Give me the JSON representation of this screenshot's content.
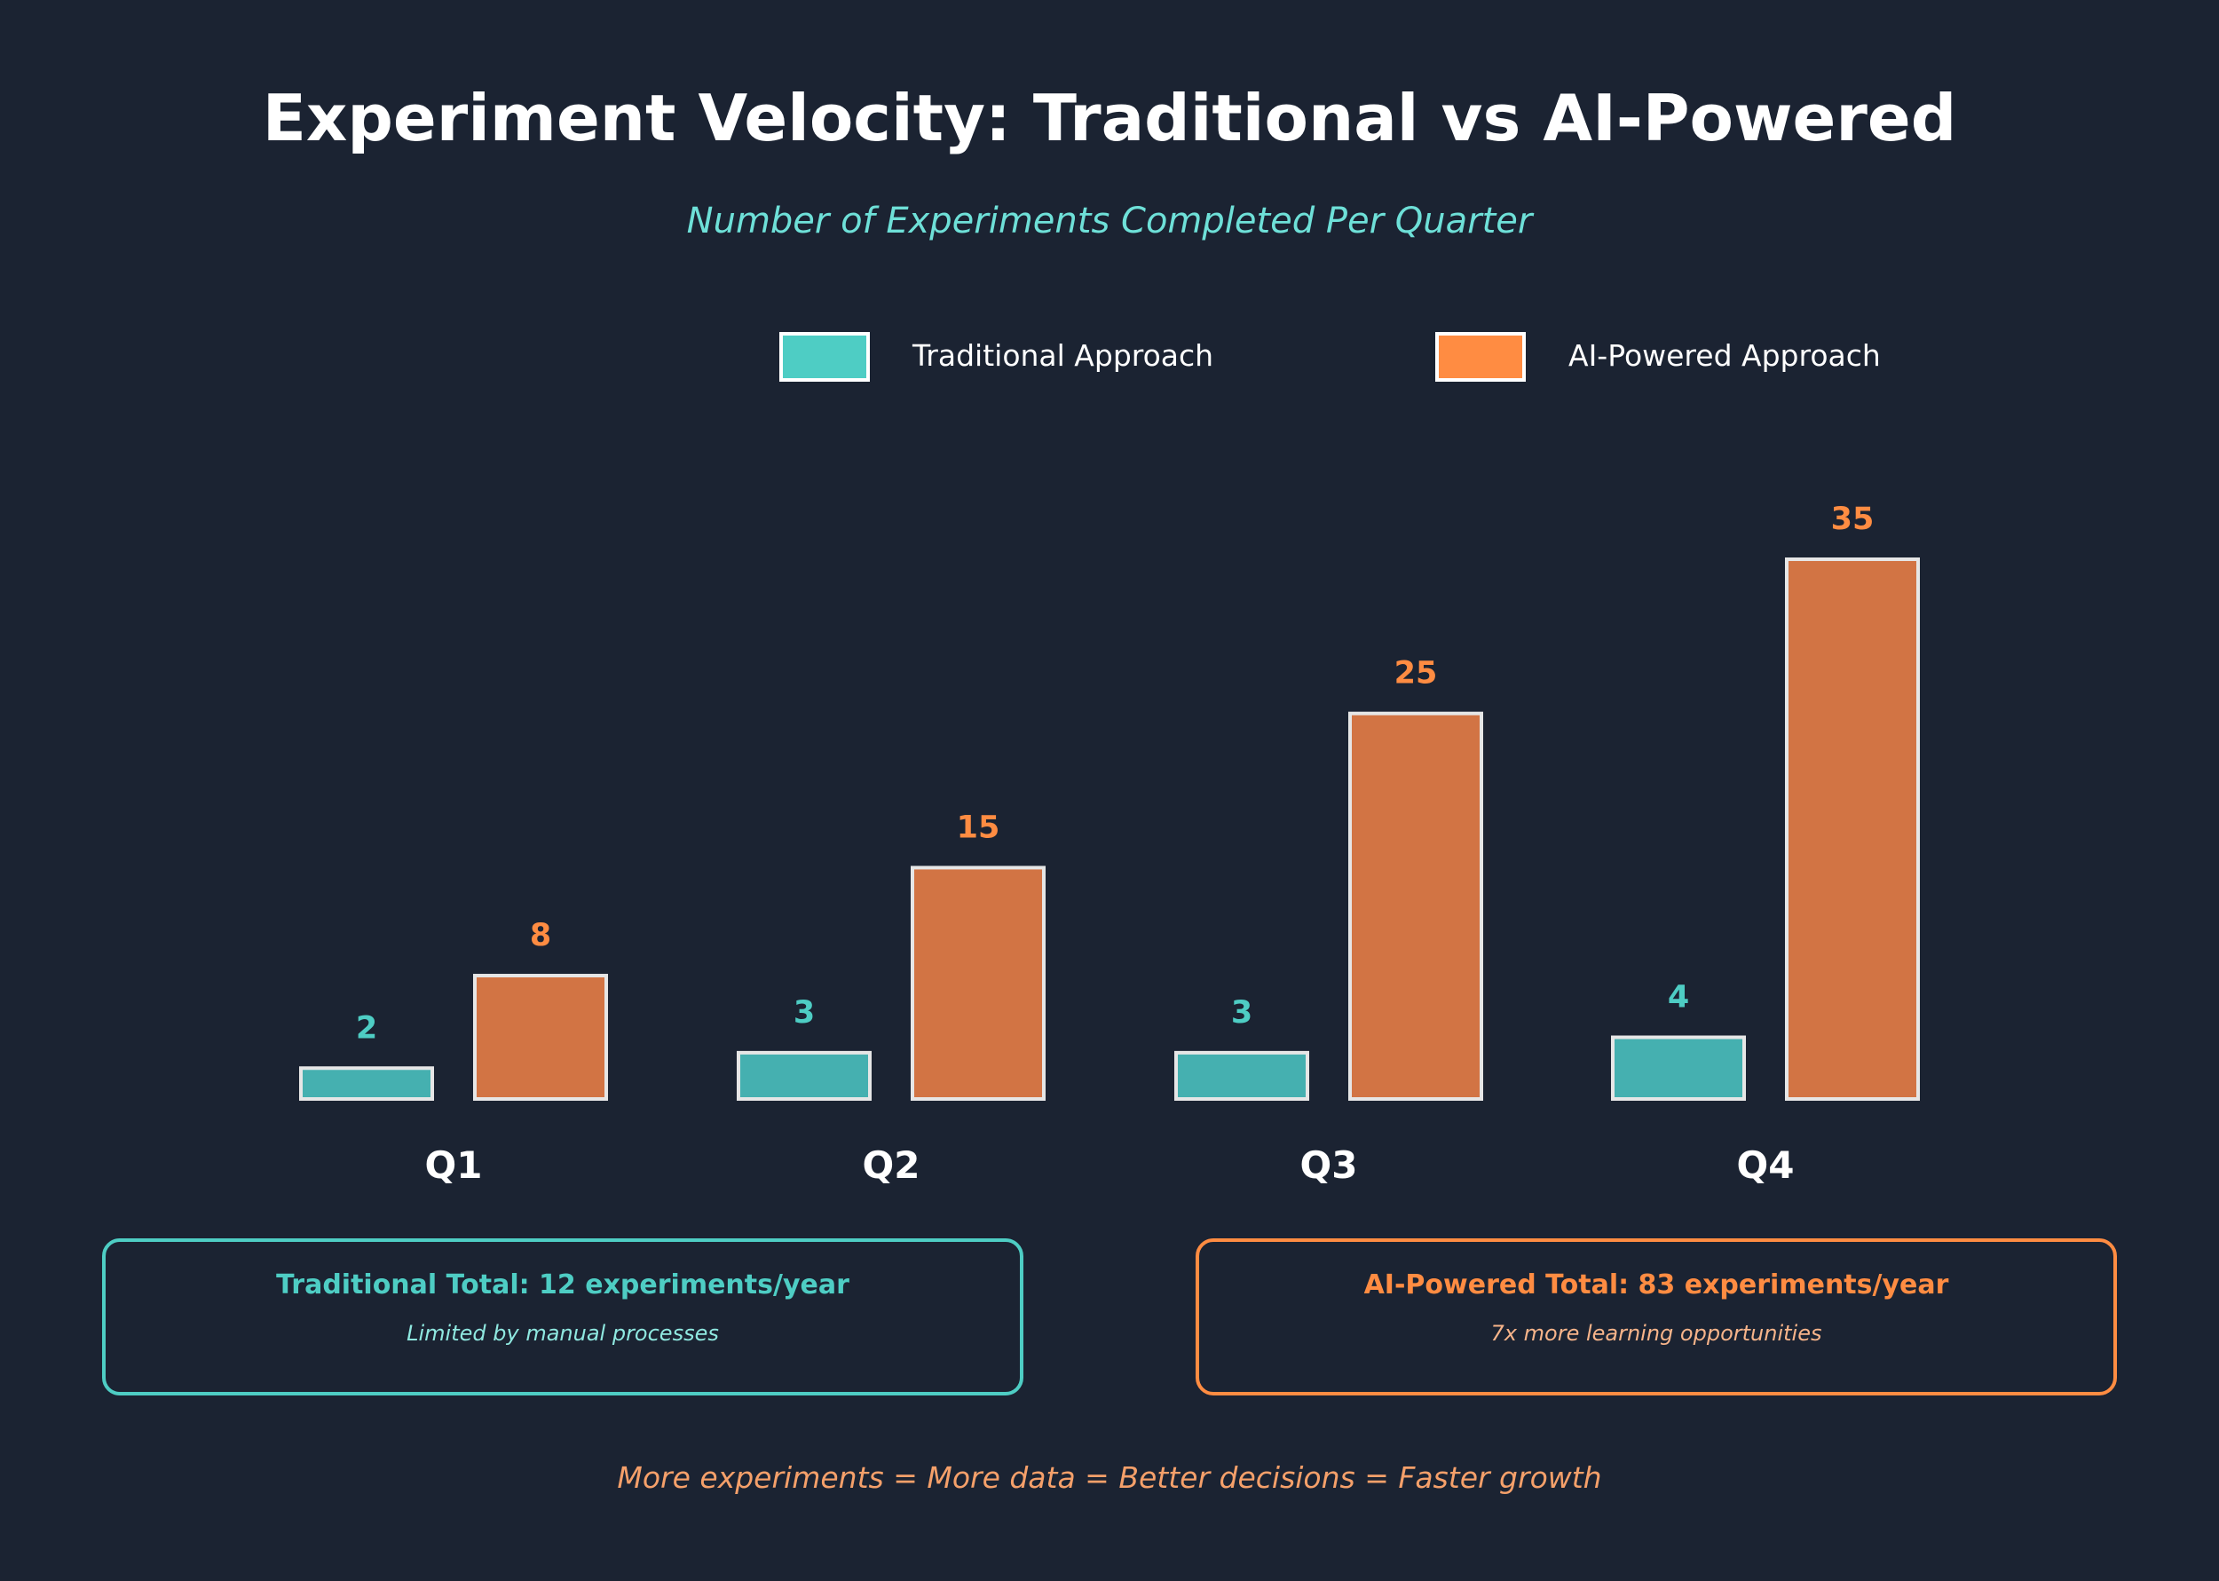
{
  "colors": {
    "background": "#1b2332",
    "traditional": "#4ecdc4",
    "traditional_bar": "#45b0b0",
    "ai": "#ff8c42",
    "ai_bar": "#d27444",
    "bar_stroke": "#e6e6e6",
    "subtitle": "#6ee0d8",
    "footer": "#f5a06a",
    "box_sub_traditional": "#8fe8e0",
    "box_sub_ai": "#f7b48a"
  },
  "chart_data": {
    "type": "bar",
    "title": "Experiment Velocity: Traditional vs AI-Powered",
    "subtitle": "Number of Experiments Completed Per Quarter",
    "categories": [
      "Q1",
      "Q2",
      "Q3",
      "Q4"
    ],
    "series": [
      {
        "name": "Traditional Approach",
        "values": [
          2,
          3,
          3,
          4
        ]
      },
      {
        "name": "AI-Powered Approach",
        "values": [
          8,
          15,
          25,
          35
        ]
      }
    ],
    "xlabel": "",
    "ylabel": "",
    "ylim": [
      0,
      35
    ],
    "grid": false,
    "legend": "top-center"
  },
  "summary": {
    "traditional": {
      "title": "Traditional Total: 12 experiments/year",
      "subtitle": "Limited by manual processes"
    },
    "ai": {
      "title": "AI-Powered Total: 83 experiments/year",
      "subtitle": "7x more learning opportunities"
    }
  },
  "footer": "More experiments = More data = Better decisions = Faster growth"
}
